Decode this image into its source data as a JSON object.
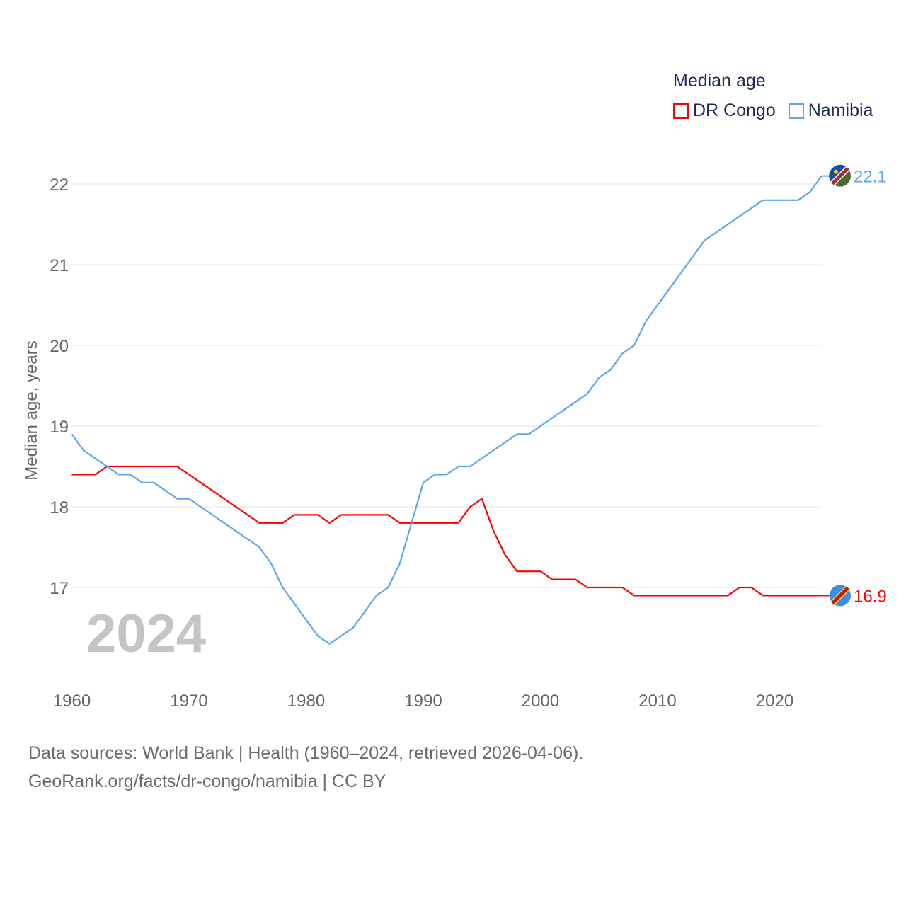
{
  "chart_data": {
    "type": "line",
    "title": "Median age",
    "xlabel": "",
    "ylabel": "Median age, years",
    "xlim": [
      1960,
      2024
    ],
    "ylim": [
      16,
      22.2
    ],
    "x_ticks": [
      "1960",
      "1970",
      "1980",
      "1990",
      "2000",
      "2010",
      "2020"
    ],
    "y_ticks": [
      "17",
      "18",
      "19",
      "20",
      "21",
      "22"
    ],
    "grid": true,
    "legend_position": "top-right",
    "year_label": "2024",
    "x": [
      1960,
      1961,
      1962,
      1963,
      1964,
      1965,
      1966,
      1967,
      1968,
      1969,
      1970,
      1971,
      1972,
      1973,
      1974,
      1975,
      1976,
      1977,
      1978,
      1979,
      1980,
      1981,
      1982,
      1983,
      1984,
      1985,
      1986,
      1987,
      1988,
      1989,
      1990,
      1991,
      1992,
      1993,
      1994,
      1995,
      1996,
      1997,
      1998,
      1999,
      2000,
      2001,
      2002,
      2003,
      2004,
      2005,
      2006,
      2007,
      2008,
      2009,
      2010,
      2011,
      2012,
      2013,
      2014,
      2015,
      2016,
      2017,
      2018,
      2019,
      2020,
      2021,
      2022,
      2023,
      2024
    ],
    "series": [
      {
        "name": "DR Congo",
        "color": "#ff0000",
        "end_label": "16.9",
        "values": [
          18.4,
          18.4,
          18.4,
          18.5,
          18.5,
          18.5,
          18.5,
          18.5,
          18.5,
          18.5,
          18.4,
          18.3,
          18.2,
          18.1,
          18.0,
          17.9,
          17.8,
          17.8,
          17.8,
          17.9,
          17.9,
          17.9,
          17.8,
          17.9,
          17.9,
          17.9,
          17.9,
          17.9,
          17.8,
          17.8,
          17.8,
          17.8,
          17.8,
          17.8,
          18.0,
          18.1,
          17.7,
          17.4,
          17.2,
          17.2,
          17.2,
          17.1,
          17.1,
          17.1,
          17.0,
          17.0,
          17.0,
          17.0,
          16.9,
          16.9,
          16.9,
          16.9,
          16.9,
          16.9,
          16.9,
          16.9,
          16.9,
          17.0,
          17.0,
          16.9,
          16.9,
          16.9,
          16.9,
          16.9,
          16.9
        ]
      },
      {
        "name": "Namibia",
        "color": "#5ba6ee",
        "end_label": "22.1",
        "values": [
          18.9,
          18.7,
          18.6,
          18.5,
          18.4,
          18.4,
          18.3,
          18.3,
          18.2,
          18.1,
          18.1,
          18.0,
          17.9,
          17.8,
          17.7,
          17.6,
          17.5,
          17.3,
          17.0,
          16.8,
          16.6,
          16.4,
          16.3,
          16.4,
          16.5,
          16.7,
          16.9,
          17.0,
          17.3,
          17.8,
          18.3,
          18.4,
          18.4,
          18.5,
          18.5,
          18.6,
          18.7,
          18.8,
          18.9,
          18.9,
          19.0,
          19.1,
          19.2,
          19.3,
          19.4,
          19.6,
          19.7,
          19.9,
          20.0,
          20.3,
          20.5,
          20.7,
          20.9,
          21.1,
          21.3,
          21.4,
          21.5,
          21.6,
          21.7,
          21.8,
          21.8,
          21.8,
          21.8,
          21.9,
          22.1
        ]
      }
    ]
  },
  "footer": {
    "line1": "Data sources: World Bank | Health (1960–2024, retrieved 2026-04-06).",
    "line2": "GeoRank.org/facts/dr-congo/namibia | CC BY"
  }
}
